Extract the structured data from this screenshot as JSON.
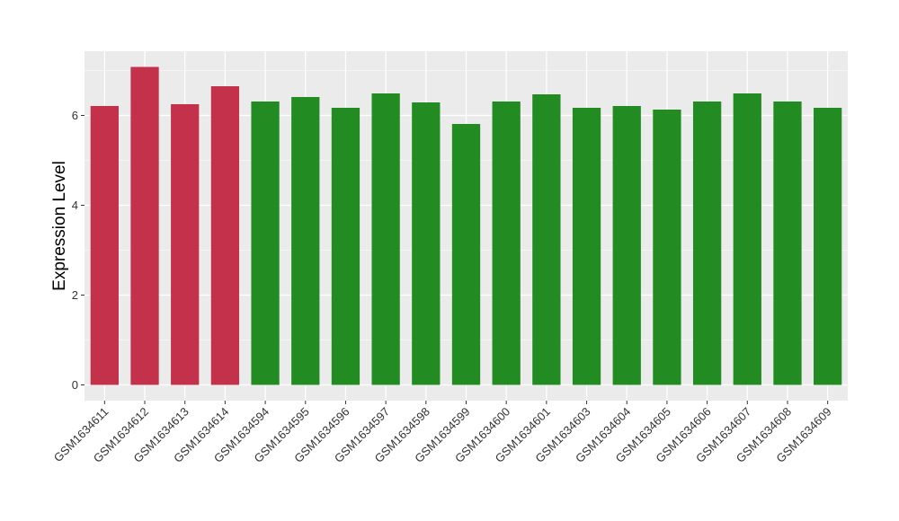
{
  "chart_data": {
    "type": "bar",
    "title": "",
    "xlabel": "",
    "ylabel": "Expression Level",
    "ylim": [
      0,
      7.3
    ],
    "yticks": [
      0,
      2,
      4,
      6
    ],
    "grid": true,
    "legend": "none",
    "panel_background": "#ebebeb",
    "grid_color": "#ffffff",
    "categories": [
      "GSM1634611",
      "GSM1634612",
      "GSM1634613",
      "GSM1634614",
      "GSM1634594",
      "GSM1634595",
      "GSM1634596",
      "GSM1634597",
      "GSM1634598",
      "GSM1634599",
      "GSM1634600",
      "GSM1634601",
      "GSM1634603",
      "GSM1634604",
      "GSM1634605",
      "GSM1634606",
      "GSM1634607",
      "GSM1634608",
      "GSM1634609"
    ],
    "values": [
      6.21,
      7.08,
      6.25,
      6.65,
      6.31,
      6.41,
      6.17,
      6.49,
      6.29,
      5.81,
      6.31,
      6.47,
      6.17,
      6.21,
      6.13,
      6.31,
      6.49,
      6.31,
      6.17
    ],
    "colors": [
      "#c4314b",
      "#c4314b",
      "#c4314b",
      "#c4314b",
      "#228b22",
      "#228b22",
      "#228b22",
      "#228b22",
      "#228b22",
      "#228b22",
      "#228b22",
      "#228b22",
      "#228b22",
      "#228b22",
      "#228b22",
      "#228b22",
      "#228b22",
      "#228b22",
      "#228b22"
    ]
  }
}
